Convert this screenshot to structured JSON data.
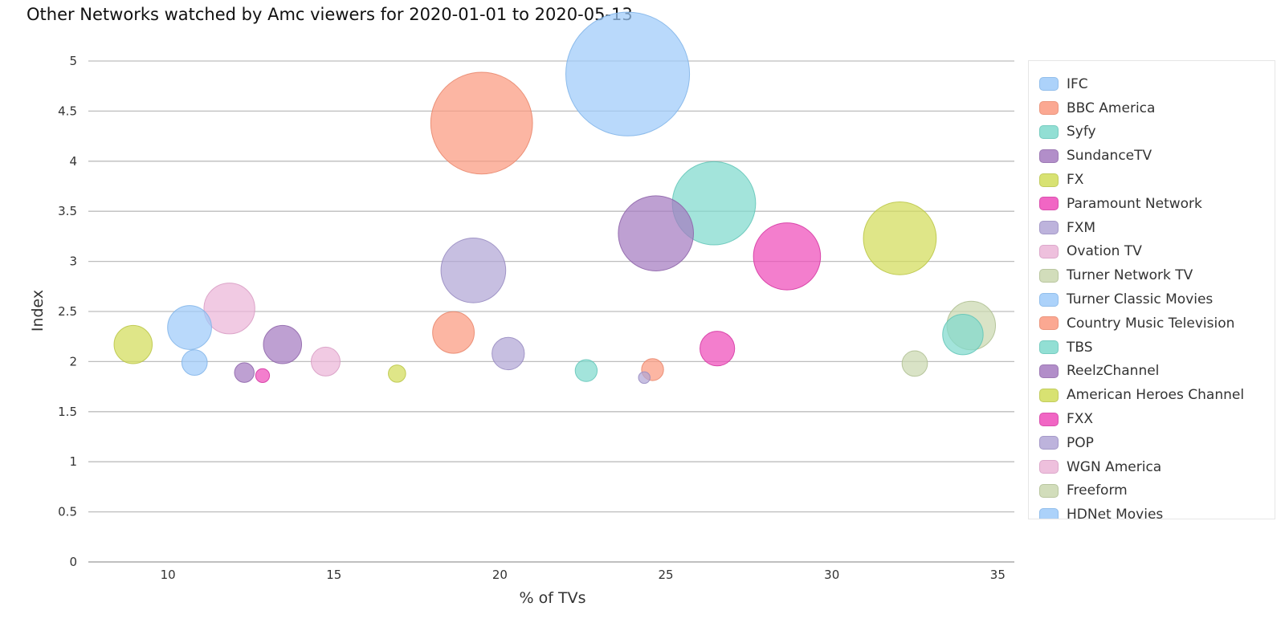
{
  "chart_data": {
    "type": "scatter",
    "title": "Other Networks watched by Amc viewers for 2020-01-01 to 2020-05-13",
    "xlabel": "% of TVs",
    "ylabel": "Index",
    "xlim": [
      7.6,
      35.5
    ],
    "ylim": [
      0,
      5
    ],
    "xticks": [
      "10",
      "15",
      "20",
      "25",
      "30",
      "35"
    ],
    "yticks": [
      "0",
      "0.5",
      "1",
      "1.5",
      "2",
      "2.5",
      "3",
      "3.5",
      "4",
      "4.5",
      "5"
    ],
    "grid": true,
    "legend_position": "right",
    "palette": [
      {
        "fill": "#9ecbfa",
        "stroke": "#7fb3e8"
      },
      {
        "fill": "#fb9a80",
        "stroke": "#e88468"
      },
      {
        "fill": "#80dacd",
        "stroke": "#5fc4b6"
      },
      {
        "fill": "#a57bc0",
        "stroke": "#8c62a8"
      },
      {
        "fill": "#d2dd5a",
        "stroke": "#b8c443"
      },
      {
        "fill": "#ef4cba",
        "stroke": "#d332a0"
      },
      {
        "fill": "#b2a6d6",
        "stroke": "#9588bf"
      },
      {
        "fill": "#ecb6d8",
        "stroke": "#d79ac2"
      },
      {
        "fill": "#cbd8b0",
        "stroke": "#adbd8f"
      }
    ],
    "series": [
      {
        "name": "IFC",
        "color": 0,
        "points": [
          {
            "x": 23.85,
            "y": 4.87,
            "size": 10.7
          }
        ]
      },
      {
        "name": "BBC America",
        "color": 1,
        "points": [
          {
            "x": 19.45,
            "y": 4.38,
            "size": 8.8
          }
        ]
      },
      {
        "name": "Syfy",
        "color": 2,
        "points": [
          {
            "x": 26.45,
            "y": 3.58,
            "size": 7.2
          }
        ]
      },
      {
        "name": "SundanceTV",
        "color": 3,
        "points": [
          {
            "x": 24.7,
            "y": 3.28,
            "size": 6.5
          }
        ]
      },
      {
        "name": "FX",
        "color": 4,
        "points": [
          {
            "x": 32.05,
            "y": 3.23,
            "size": 6.3
          }
        ]
      },
      {
        "name": "Paramount Network",
        "color": 5,
        "points": [
          {
            "x": 28.65,
            "y": 3.05,
            "size": 5.8
          }
        ]
      },
      {
        "name": "FXM",
        "color": 6,
        "points": [
          {
            "x": 19.2,
            "y": 2.91,
            "size": 5.6
          }
        ]
      },
      {
        "name": "Ovation TV",
        "color": 7,
        "points": [
          {
            "x": 11.85,
            "y": 2.53,
            "size": 4.4
          }
        ]
      },
      {
        "name": "Turner Network TV",
        "color": 8,
        "points": [
          {
            "x": 34.2,
            "y": 2.36,
            "size": 4.2
          }
        ]
      },
      {
        "name": "Turner Classic Movies",
        "color": 0,
        "points": [
          {
            "x": 10.65,
            "y": 2.34,
            "size": 3.8
          }
        ]
      },
      {
        "name": "Country Music Television",
        "color": 1,
        "points": [
          {
            "x": 18.6,
            "y": 2.29,
            "size": 3.6
          }
        ]
      },
      {
        "name": "TBS",
        "color": 2,
        "points": [
          {
            "x": 33.95,
            "y": 2.27,
            "size": 3.5
          }
        ]
      },
      {
        "name": "ReelzChannel",
        "color": 3,
        "points": [
          {
            "x": 13.45,
            "y": 2.17,
            "size": 3.3
          }
        ]
      },
      {
        "name": "American Heroes Channel",
        "color": 4,
        "points": [
          {
            "x": 8.95,
            "y": 2.17,
            "size": 3.3
          }
        ]
      },
      {
        "name": "FXX",
        "color": 5,
        "points": [
          {
            "x": 26.55,
            "y": 2.13,
            "size": 3.0
          }
        ]
      },
      {
        "name": "POP",
        "color": 6,
        "points": [
          {
            "x": 20.25,
            "y": 2.08,
            "size": 2.8
          }
        ]
      },
      {
        "name": "WGN America",
        "color": 7,
        "points": [
          {
            "x": 14.75,
            "y": 2.0,
            "size": 2.5
          }
        ]
      },
      {
        "name": "Freeform",
        "color": 8,
        "points": [
          {
            "x": 32.5,
            "y": 1.98,
            "size": 2.2
          }
        ]
      },
      {
        "name": "HDNet Movies",
        "color": 0,
        "points": [
          {
            "x": 10.8,
            "y": 1.99,
            "size": 2.2
          }
        ]
      },
      {
        "name": "",
        "color": 2,
        "points": [
          {
            "x": 22.6,
            "y": 1.91,
            "size": 1.9
          }
        ]
      },
      {
        "name": "",
        "color": 1,
        "points": [
          {
            "x": 24.6,
            "y": 1.92,
            "size": 1.9
          }
        ]
      },
      {
        "name": "",
        "color": 3,
        "points": [
          {
            "x": 12.3,
            "y": 1.89,
            "size": 1.7
          }
        ]
      },
      {
        "name": "",
        "color": 4,
        "points": [
          {
            "x": 16.9,
            "y": 1.88,
            "size": 1.5
          }
        ]
      },
      {
        "name": "",
        "color": 5,
        "points": [
          {
            "x": 12.85,
            "y": 1.86,
            "size": 1.2
          }
        ]
      },
      {
        "name": "",
        "color": 6,
        "points": [
          {
            "x": 24.35,
            "y": 1.84,
            "size": 1.0
          }
        ]
      }
    ]
  }
}
